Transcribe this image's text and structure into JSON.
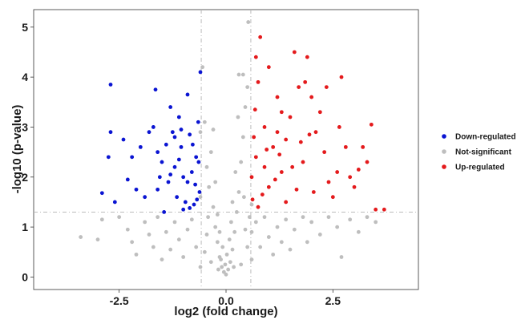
{
  "chart_data": {
    "type": "scatter",
    "xlabel": "log2 (fold change)",
    "ylabel": "-log10 (p-value)",
    "xlim": [
      -4.5,
      4.5
    ],
    "ylim": [
      -0.25,
      5.35
    ],
    "x_ticks": [
      -2.5,
      0.0,
      2.5
    ],
    "x_tick_labels": [
      "-2.5",
      "0.0",
      "2.5"
    ],
    "y_ticks": [
      0,
      1,
      2,
      3,
      4,
      5
    ],
    "y_tick_labels": [
      "0",
      "1",
      "2",
      "3",
      "4",
      "5"
    ],
    "thresholds": {
      "fold_change_x": [
        -0.58,
        0.58
      ],
      "pvalue_y": 1.3
    },
    "grid": false,
    "legend_position": "right",
    "series": [
      {
        "name": "Down-regulated",
        "color": "#0a14d2",
        "points": [
          [
            -2.7,
            3.85
          ],
          [
            -2.7,
            2.9
          ],
          [
            -2.75,
            2.4
          ],
          [
            -2.9,
            1.68
          ],
          [
            -2.6,
            1.5
          ],
          [
            -2.4,
            2.75
          ],
          [
            -2.2,
            2.4
          ],
          [
            -2.1,
            1.75
          ],
          [
            -1.9,
            1.6
          ],
          [
            -2.0,
            2.6
          ],
          [
            -1.8,
            2.9
          ],
          [
            -1.7,
            3.0
          ],
          [
            -1.65,
            3.75
          ],
          [
            -1.6,
            2.5
          ],
          [
            -1.55,
            2.0
          ],
          [
            -1.5,
            2.3
          ],
          [
            -1.4,
            2.65
          ],
          [
            -1.3,
            3.4
          ],
          [
            -1.25,
            2.9
          ],
          [
            -1.35,
            1.9
          ],
          [
            -1.2,
            2.2
          ],
          [
            -1.15,
            1.6
          ],
          [
            -1.1,
            3.2
          ],
          [
            -1.05,
            2.6
          ],
          [
            -1.0,
            2.0
          ],
          [
            -0.95,
            1.5
          ],
          [
            -0.9,
            3.65
          ],
          [
            -0.85,
            2.85
          ],
          [
            -0.8,
            2.1
          ],
          [
            -0.75,
            1.45
          ],
          [
            -0.7,
            2.4
          ],
          [
            -0.65,
            3.1
          ],
          [
            -0.62,
            1.7
          ],
          [
            -0.6,
            4.1
          ],
          [
            -0.64,
            2.3
          ],
          [
            -1.1,
            2.35
          ],
          [
            -1.3,
            2.05
          ],
          [
            -0.9,
            1.9
          ],
          [
            -0.78,
            2.65
          ],
          [
            -1.45,
            1.3
          ],
          [
            -1.0,
            1.35
          ],
          [
            -0.72,
            1.85
          ],
          [
            -1.2,
            2.8
          ],
          [
            -0.68,
            1.55
          ],
          [
            -1.6,
            1.75
          ],
          [
            -0.85,
            1.38
          ],
          [
            -2.3,
            1.95
          ],
          [
            -1.05,
            2.95
          ]
        ]
      },
      {
        "name": "Not-significant",
        "color": "#bebebe",
        "points": [
          [
            -3.4,
            0.8
          ],
          [
            -3.0,
            0.75
          ],
          [
            -2.9,
            1.15
          ],
          [
            -2.5,
            1.2
          ],
          [
            -2.3,
            0.95
          ],
          [
            -2.2,
            0.7
          ],
          [
            -2.1,
            0.45
          ],
          [
            -1.9,
            1.1
          ],
          [
            -1.8,
            0.85
          ],
          [
            -1.7,
            0.6
          ],
          [
            -1.6,
            1.2
          ],
          [
            -1.5,
            0.35
          ],
          [
            -1.4,
            0.9
          ],
          [
            -1.3,
            0.55
          ],
          [
            -1.2,
            1.1
          ],
          [
            -1.1,
            0.75
          ],
          [
            -1.0,
            0.4
          ],
          [
            -0.9,
            0.95
          ],
          [
            -0.8,
            1.15
          ],
          [
            -0.7,
            0.6
          ],
          [
            -0.6,
            2.9
          ],
          [
            -0.5,
            3.1
          ],
          [
            -0.55,
            4.2
          ],
          [
            -0.45,
            2.2
          ],
          [
            -0.4,
            1.8
          ],
          [
            -0.35,
            2.5
          ],
          [
            -0.3,
            1.4
          ],
          [
            -0.25,
            1.0
          ],
          [
            -0.2,
            0.7
          ],
          [
            -0.15,
            0.4
          ],
          [
            -0.1,
            0.2
          ],
          [
            -0.05,
            0.1
          ],
          [
            0.0,
            0.05
          ],
          [
            0.05,
            0.15
          ],
          [
            0.1,
            0.3
          ],
          [
            0.15,
            0.55
          ],
          [
            0.2,
            0.9
          ],
          [
            0.25,
            1.3
          ],
          [
            0.3,
            1.7
          ],
          [
            0.35,
            2.3
          ],
          [
            0.4,
            2.8
          ],
          [
            0.45,
            3.4
          ],
          [
            0.5,
            3.8
          ],
          [
            0.3,
            4.05
          ],
          [
            0.4,
            4.05
          ],
          [
            0.52,
            5.1
          ],
          [
            0.55,
            1.2
          ],
          [
            0.6,
            0.9
          ],
          [
            0.7,
            1.1
          ],
          [
            0.8,
            0.6
          ],
          [
            0.9,
            1.2
          ],
          [
            1.0,
            0.8
          ],
          [
            1.1,
            0.45
          ],
          [
            1.2,
            1.0
          ],
          [
            1.3,
            0.7
          ],
          [
            1.4,
            1.15
          ],
          [
            1.5,
            0.55
          ],
          [
            1.6,
            0.95
          ],
          [
            1.8,
            1.2
          ],
          [
            1.9,
            0.7
          ],
          [
            2.0,
            1.1
          ],
          [
            2.2,
            0.85
          ],
          [
            2.4,
            1.2
          ],
          [
            2.6,
            1.0
          ],
          [
            2.7,
            0.4
          ],
          [
            2.9,
            1.15
          ],
          [
            3.1,
            0.9
          ],
          [
            3.3,
            1.2
          ],
          [
            3.5,
            1.1
          ],
          [
            -0.35,
            0.3
          ],
          [
            0.35,
            0.25
          ],
          [
            -0.15,
            0.9
          ],
          [
            0.15,
            1.5
          ],
          [
            -0.25,
            1.9
          ],
          [
            0.22,
            2.1
          ],
          [
            -0.42,
            1.2
          ],
          [
            0.42,
            1.6
          ],
          [
            -0.6,
            0.2
          ],
          [
            0.6,
            0.35
          ],
          [
            -0.08,
            0.6
          ],
          [
            0.08,
            0.75
          ],
          [
            -0.5,
            0.5
          ],
          [
            0.5,
            0.6
          ],
          [
            -0.3,
            2.95
          ],
          [
            0.28,
            3.2
          ],
          [
            -0.2,
            1.25
          ],
          [
            0.12,
            1.1
          ],
          [
            -0.45,
            0.85
          ],
          [
            0.45,
            0.95
          ],
          [
            -0.12,
            0.35
          ],
          [
            0.02,
            0.45
          ],
          [
            -0.02,
            0.25
          ],
          [
            0.18,
            0.2
          ],
          [
            -0.18,
            0.15
          ],
          [
            -0.6,
            1.6
          ],
          [
            0.6,
            1.45
          ]
        ]
      },
      {
        "name": "Up-regulated",
        "color": "#e41a1c",
        "points": [
          [
            0.8,
            4.8
          ],
          [
            0.7,
            4.4
          ],
          [
            0.75,
            3.9
          ],
          [
            1.0,
            4.2
          ],
          [
            1.2,
            3.6
          ],
          [
            1.3,
            3.3
          ],
          [
            0.9,
            3.0
          ],
          [
            0.65,
            2.8
          ],
          [
            0.7,
            2.4
          ],
          [
            0.6,
            2.0
          ],
          [
            0.62,
            1.55
          ],
          [
            0.75,
            1.4
          ],
          [
            0.9,
            2.2
          ],
          [
            1.0,
            1.8
          ],
          [
            1.1,
            2.6
          ],
          [
            1.2,
            2.9
          ],
          [
            1.3,
            2.1
          ],
          [
            1.4,
            1.5
          ],
          [
            1.5,
            3.2
          ],
          [
            1.6,
            4.5
          ],
          [
            1.7,
            3.8
          ],
          [
            1.75,
            2.7
          ],
          [
            1.8,
            2.3
          ],
          [
            1.9,
            4.4
          ],
          [
            1.85,
            3.9
          ],
          [
            2.0,
            3.6
          ],
          [
            2.1,
            2.9
          ],
          [
            2.2,
            3.3
          ],
          [
            2.3,
            2.5
          ],
          [
            2.4,
            1.9
          ],
          [
            2.5,
            1.6
          ],
          [
            2.6,
            2.1
          ],
          [
            2.7,
            4.0
          ],
          [
            2.65,
            3.0
          ],
          [
            2.8,
            2.6
          ],
          [
            3.0,
            1.8
          ],
          [
            3.2,
            2.6
          ],
          [
            3.3,
            2.3
          ],
          [
            3.4,
            3.05
          ],
          [
            3.1,
            2.15
          ],
          [
            3.5,
            1.35
          ],
          [
            3.7,
            1.35
          ],
          [
            2.9,
            2.0
          ],
          [
            1.4,
            2.75
          ],
          [
            0.95,
            2.55
          ],
          [
            1.15,
            1.95
          ],
          [
            1.55,
            2.2
          ],
          [
            2.05,
            1.7
          ],
          [
            0.68,
            3.35
          ],
          [
            1.65,
            1.75
          ],
          [
            2.35,
            3.8
          ],
          [
            0.85,
            1.65
          ],
          [
            1.25,
            2.45
          ],
          [
            1.95,
            2.85
          ]
        ]
      }
    ]
  }
}
